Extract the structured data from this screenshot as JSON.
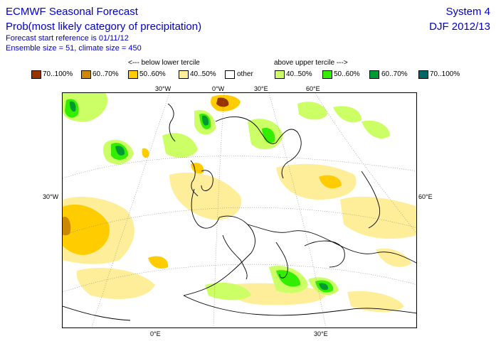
{
  "header": {
    "title": "ECMWF Seasonal Forecast",
    "subtitle": "Prob(most likely category of precipitation)",
    "forecast_ref": "Forecast start reference is 01/11/12",
    "ensemble": "Ensemble size = 51, climate size = 450",
    "system": "System 4",
    "period": "DJF 2012/13"
  },
  "legend": {
    "below_label": "<--- below lower tercile",
    "above_label": "above upper tercile --->",
    "items": [
      {
        "label": "70..100%",
        "color": "#993300"
      },
      {
        "label": "60..70%",
        "color": "#cc8800"
      },
      {
        "label": "50..60%",
        "color": "#ffcc00"
      },
      {
        "label": "40..50%",
        "color": "#ffee99"
      },
      {
        "label": "other",
        "color": "#ffffff"
      },
      {
        "label": "40..50%",
        "color": "#ccff66"
      },
      {
        "label": "50..60%",
        "color": "#33ee00"
      },
      {
        "label": "60..70%",
        "color": "#009933"
      },
      {
        "label": "70..100%",
        "color": "#006666"
      }
    ]
  },
  "coords": {
    "top": [
      "30°W",
      "0°W",
      "30°E",
      "60°E"
    ],
    "left": "30°W",
    "right": "60°E",
    "bottom": [
      "0°E",
      "30°E"
    ]
  }
}
